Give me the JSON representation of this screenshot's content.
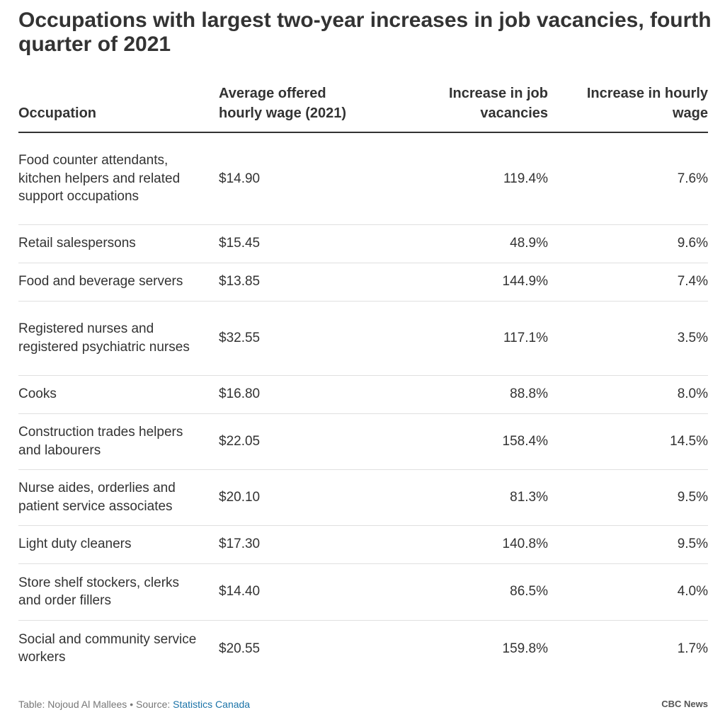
{
  "title": "Occupations with largest two-year increases in job vacancies, fourth quarter of 2021",
  "chart_data": {
    "type": "table",
    "columns": [
      "Occupation",
      "Average offered hourly wage (2021)",
      "Increase in job vacancies",
      "Increase in hourly wage"
    ],
    "rows": [
      [
        "Food counter attendants, kitchen helpers and related support occupations",
        "$14.90",
        "119.4%",
        "7.6%"
      ],
      [
        "Retail salespersons",
        "$15.45",
        "48.9%",
        "9.6%"
      ],
      [
        "Food and beverage servers",
        "$13.85",
        "144.9%",
        "7.4%"
      ],
      [
        "Registered nurses and registered psychiatric nurses",
        "$32.55",
        "117.1%",
        "3.5%"
      ],
      [
        "Cooks",
        "$16.80",
        "88.8%",
        "8.0%"
      ],
      [
        "Construction trades helpers and labourers",
        "$22.05",
        "158.4%",
        "14.5%"
      ],
      [
        "Nurse aides, orderlies and patient service associates",
        "$20.10",
        "81.3%",
        "9.5%"
      ],
      [
        "Light duty cleaners",
        "$17.30",
        "140.8%",
        "9.5%"
      ],
      [
        "Store shelf stockers, clerks and order fillers",
        "$14.40",
        "86.5%",
        "4.0%"
      ],
      [
        "Social and community service workers",
        "$20.55",
        "159.8%",
        "1.7%"
      ]
    ]
  },
  "footer": {
    "credit": "Table: Nojoud Al Mallees • Source: ",
    "source_link": "Statistics Canada",
    "brand": "CBC News"
  }
}
